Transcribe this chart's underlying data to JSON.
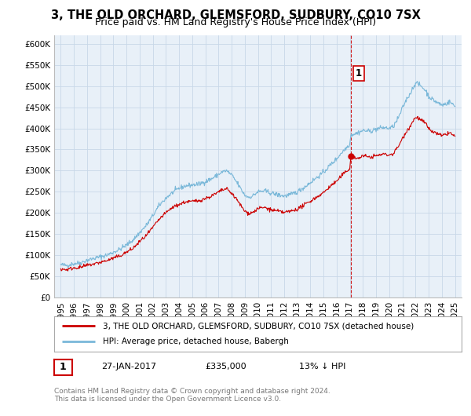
{
  "title": "3, THE OLD ORCHARD, GLEMSFORD, SUDBURY, CO10 7SX",
  "subtitle": "Price paid vs. HM Land Registry's House Price Index (HPI)",
  "hpi_label": "HPI: Average price, detached house, Babergh",
  "property_label": "3, THE OLD ORCHARD, GLEMSFORD, SUDBURY, CO10 7SX (detached house)",
  "annotation_label": "1",
  "annotation_date": "27-JAN-2017",
  "annotation_price": 335000,
  "annotation_price_str": "£335,000",
  "annotation_hpi_pct": "13% ↓ HPI",
  "sale_date_x": 2017.07,
  "sale_price": 335000,
  "vline_x": 2017.07,
  "ylim": [
    0,
    620000
  ],
  "xlim": [
    1994.5,
    2025.5
  ],
  "yticks": [
    0,
    50000,
    100000,
    150000,
    200000,
    250000,
    300000,
    350000,
    400000,
    450000,
    500000,
    550000,
    600000
  ],
  "ytick_labels": [
    "£0",
    "£50K",
    "£100K",
    "£150K",
    "£200K",
    "£250K",
    "£300K",
    "£350K",
    "£400K",
    "£450K",
    "£500K",
    "£550K",
    "£600K"
  ],
  "xticks": [
    1995,
    1996,
    1997,
    1998,
    1999,
    2000,
    2001,
    2002,
    2003,
    2004,
    2005,
    2006,
    2007,
    2008,
    2009,
    2010,
    2011,
    2012,
    2013,
    2014,
    2015,
    2016,
    2017,
    2018,
    2019,
    2020,
    2021,
    2022,
    2023,
    2024,
    2025
  ],
  "hpi_color": "#7ab8d9",
  "property_color": "#cc0000",
  "vline_color": "#cc0000",
  "grid_color": "#c8d8e8",
  "plot_bg_color": "#e8f0f8",
  "footer_text": "Contains HM Land Registry data © Crown copyright and database right 2024.\nThis data is licensed under the Open Government Licence v3.0.",
  "legend_box_color": "#ffffff",
  "annotation_box_edge": "#cc0000",
  "title_fontsize": 10.5,
  "subtitle_fontsize": 9,
  "tick_fontsize": 7.5,
  "legend_fontsize": 7.5,
  "footer_fontsize": 6.5
}
